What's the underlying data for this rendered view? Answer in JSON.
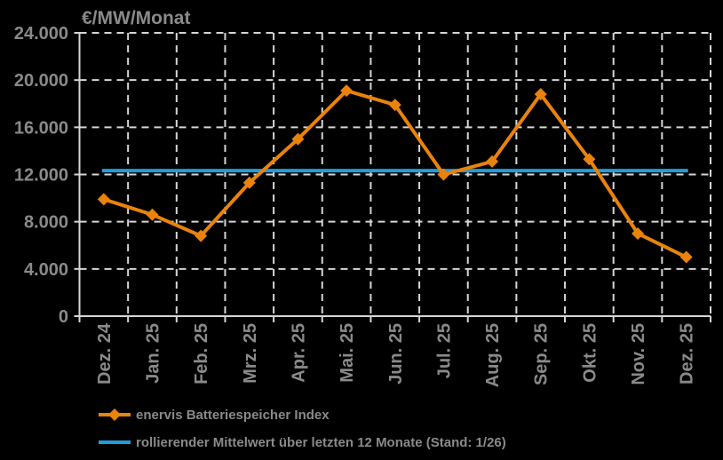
{
  "colors": {
    "background": "#000000",
    "grid": "#D6D6D6",
    "axis": "#D6D6D6",
    "label_text": "#8A8A8A",
    "index_orange": "#E9830C",
    "mean_blue": "#219DD9"
  },
  "chart_data": {
    "type": "line",
    "title": "€/MW/Monat",
    "categories": [
      "Dez. 24",
      "Jan. 25",
      "Feb. 25",
      "Mrz. 25",
      "Apr. 25",
      "Mai. 25",
      "Jun. 25",
      "Jul. 25",
      "Aug. 25",
      "Sep. 25",
      "Okt. 25",
      "Nov. 25",
      "Dez. 25"
    ],
    "series": [
      {
        "name": "enervis Batteriespeicher Index",
        "type": "line",
        "marker": "diamond",
        "color": "#E9830C",
        "values": [
          9900,
          8600,
          6800,
          11300,
          15000,
          19100,
          17900,
          12000,
          13100,
          18800,
          13300,
          7000,
          5000
        ]
      },
      {
        "name": "rollierender Mittelwert über letzten 12 Monate (Stand: 1/26)",
        "type": "constant-line",
        "color": "#219DD9",
        "value": 12333
      }
    ],
    "xlabel": "",
    "ylabel": "",
    "ylim": [
      0,
      24000
    ],
    "ytick_step": 4000,
    "ytick_labels": [
      "0",
      "4.000",
      "8.000",
      "12.000",
      "16.000",
      "20.000",
      "24.000"
    ],
    "grid": "dashed",
    "grid_on": true,
    "legend_position": "bottom-left"
  }
}
